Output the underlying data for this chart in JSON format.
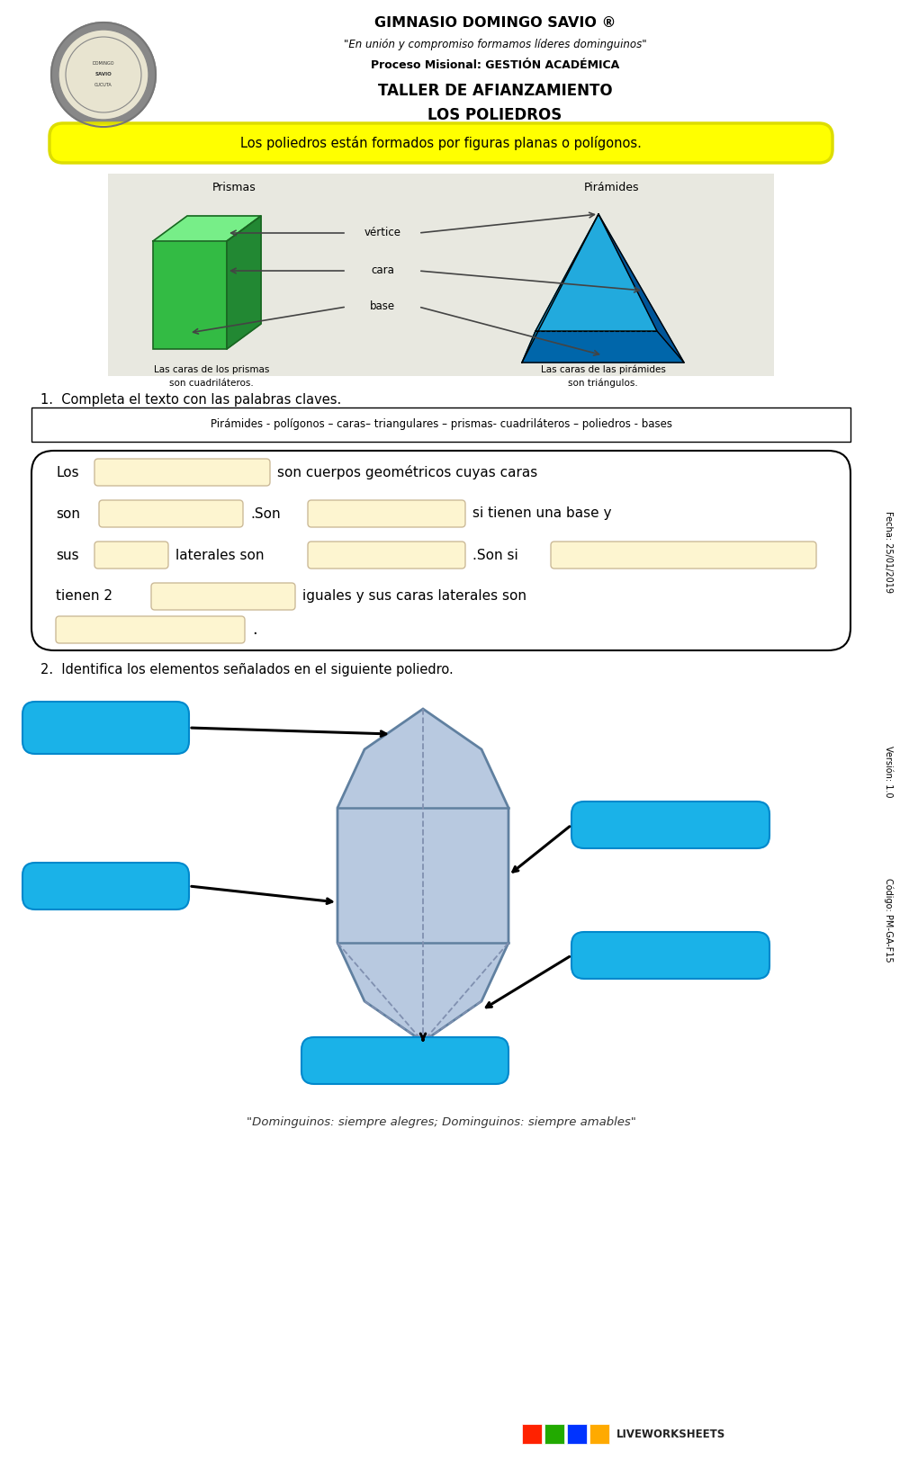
{
  "title1": "GIMNASIO DOMINGO SAVIO ®",
  "title2": "\"En unión y compromiso formamos líderes dominguinos\"",
  "title3": "Proceso Misional: GESTIÓN ACADÉMICA",
  "title4": "TALLER DE AFIANZAMIENTO",
  "title5": "LOS POLIEDROS",
  "yellow_box_text": "Los poliedros están formados por figuras planas o polígonos.",
  "section1_label": "1.  Completa el texto con las palabras claves.",
  "keywords_box": "Pirámides - polígonos – caras– triangulares – prismas- cuadriláteros – poliedros - bases",
  "section2_label": "2.  Identifica los elementos señalados en el siguiente poliedro.",
  "footer_text": "\"Dominguinos: siempre alegres; Dominguinos: siempre amables\"",
  "side_text_fecha": "Fecha: 25/01/2019",
  "side_text_version": "Versión: 1.0",
  "side_text_codigo": "Código: PM-GA-F15",
  "bg_color": "#ffffff",
  "yellow_bg": "#ffff00",
  "yellow_border": "#dddd00",
  "input_box_color": "#fdf5d0",
  "blue_box_color": "#1ab2e8",
  "polyhedron_fill": "#b8c9e0",
  "polyhedron_edge": "#6080a0",
  "poly_dashed": "#8090b0",
  "img_bg": "#e8e8e0",
  "green_dark": "#228b22",
  "green_mid": "#44cc44",
  "green_light": "#88ee88",
  "blue_pyr_light": "#22aadd",
  "blue_pyr_mid": "#1188bb",
  "blue_pyr_dark": "#0066aa"
}
